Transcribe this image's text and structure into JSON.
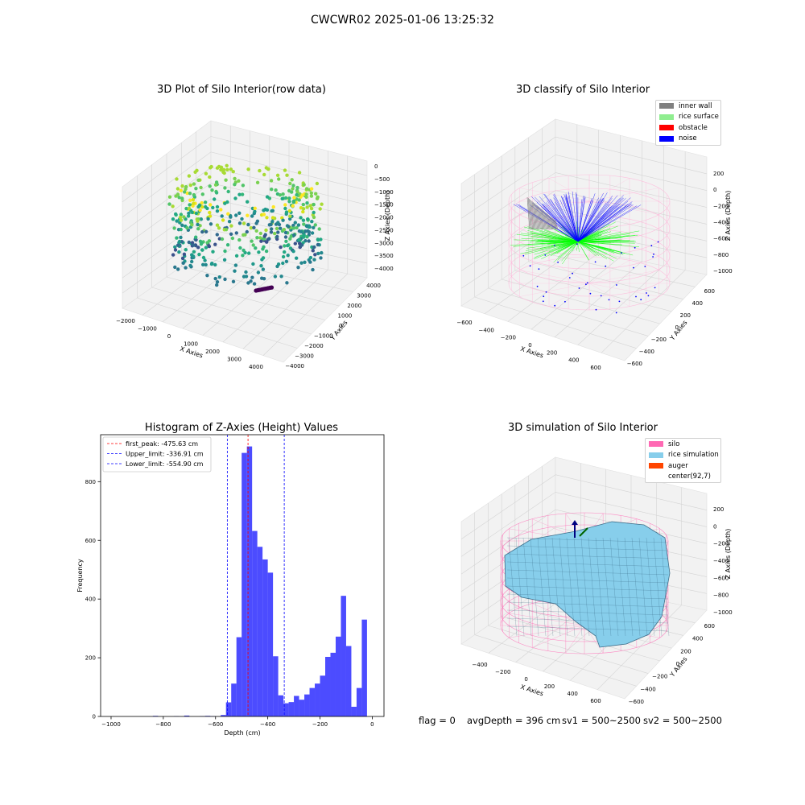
{
  "suptitle": "CWCWR02 2025-01-06 13:25:32",
  "panels": {
    "raw": {
      "title": "3D Plot of Silo Interior(row data)",
      "x_label": "X Axies",
      "y_label": "Y Axies",
      "z_label": "Z Axies (Depth)",
      "x_ticks": [
        "−2000",
        "−1000",
        "0",
        "1000",
        "2000",
        "3000",
        "4000"
      ],
      "y_ticks": [
        "−4000",
        "−3000",
        "−2000",
        "−1000",
        "0",
        "1000",
        "2000",
        "3000",
        "4000"
      ],
      "z_ticks": [
        "0",
        "−500",
        "−1000",
        "−1500",
        "−2000",
        "−2500",
        "−3000",
        "−3500",
        "−4000"
      ]
    },
    "classify": {
      "title": "3D classify of Silo Interior",
      "x_label": "X Axies",
      "y_label": "Y Axies",
      "z_label": "Z Axies (Depth)",
      "x_ticks": [
        "−600",
        "−400",
        "−200",
        "0",
        "200",
        "400",
        "600"
      ],
      "y_ticks": [
        "−600",
        "−400",
        "−200",
        "0",
        "200",
        "400",
        "600"
      ],
      "z_ticks": [
        "200",
        "0",
        "−200",
        "−400",
        "−600",
        "−800",
        "−1000"
      ],
      "legend": [
        {
          "label": "inner wall",
          "color": "#808080"
        },
        {
          "label": "rice surface",
          "color": "#90ee90"
        },
        {
          "label": "obstacle",
          "color": "#ff0000"
        },
        {
          "label": "noise",
          "color": "#0000ff"
        }
      ]
    },
    "simulation": {
      "title": "3D simulation of Silo Interior",
      "x_label": "X Axies",
      "y_label": "Y Axies",
      "z_label": "Z Axies (Depth)",
      "x_ticks": [
        "−400",
        "−200",
        "0",
        "200",
        "400",
        "600"
      ],
      "y_ticks": [
        "−600",
        "−400",
        "−200",
        "0",
        "200",
        "400",
        "600"
      ],
      "z_ticks": [
        "200",
        "0",
        "−200",
        "−400",
        "−600",
        "−800",
        "−1000"
      ],
      "legend": [
        {
          "label": "silo",
          "color": "#ff69b4"
        },
        {
          "label": "rice simulation",
          "color": "#87ceeb"
        },
        {
          "label": "auger",
          "color": "#ff4500"
        },
        {
          "label": "center(92,7)",
          "color": ""
        }
      ]
    }
  },
  "chart_data": {
    "type": "bar",
    "title": "Histogram of Z-Axies (Height) Values",
    "xlabel": "Depth (cm)",
    "ylabel": "Frequency",
    "xlim": [
      -1040,
      45
    ],
    "ylim": [
      0,
      960
    ],
    "x_ticks": [
      -1000,
      -800,
      -600,
      -400,
      -200,
      0
    ],
    "x_tick_labels": [
      "−1000",
      "−800",
      "−600",
      "−400",
      "−200",
      "0"
    ],
    "y_ticks": [
      0,
      200,
      400,
      600,
      800
    ],
    "bar_color": "#0000ff",
    "bins": [
      [
        -1000,
        -980,
        0
      ],
      [
        -980,
        -960,
        0
      ],
      [
        -960,
        -940,
        0
      ],
      [
        -940,
        -920,
        0
      ],
      [
        -920,
        -900,
        0
      ],
      [
        -900,
        -880,
        0
      ],
      [
        -880,
        -860,
        0
      ],
      [
        -860,
        -840,
        0
      ],
      [
        -840,
        -820,
        2
      ],
      [
        -820,
        -800,
        0
      ],
      [
        -800,
        -780,
        0
      ],
      [
        -780,
        -760,
        0
      ],
      [
        -760,
        -740,
        1
      ],
      [
        -740,
        -720,
        0
      ],
      [
        -720,
        -700,
        3
      ],
      [
        -700,
        -680,
        0
      ],
      [
        -680,
        -660,
        0
      ],
      [
        -660,
        -640,
        1
      ],
      [
        -640,
        -620,
        2
      ],
      [
        -620,
        -600,
        1
      ],
      [
        -600,
        -580,
        0
      ],
      [
        -580,
        -560,
        5
      ],
      [
        -560,
        -540,
        48
      ],
      [
        -540,
        -520,
        112
      ],
      [
        -520,
        -500,
        270
      ],
      [
        -500,
        -480,
        898
      ],
      [
        -480,
        -460,
        920
      ],
      [
        -460,
        -440,
        632
      ],
      [
        -440,
        -420,
        578
      ],
      [
        -420,
        -400,
        535
      ],
      [
        -400,
        -380,
        490
      ],
      [
        -380,
        -360,
        205
      ],
      [
        -360,
        -340,
        72
      ],
      [
        -340,
        -320,
        45
      ],
      [
        -320,
        -300,
        49
      ],
      [
        -300,
        -280,
        70
      ],
      [
        -280,
        -260,
        57
      ],
      [
        -260,
        -240,
        75
      ],
      [
        -240,
        -220,
        97
      ],
      [
        -220,
        -200,
        112
      ],
      [
        -200,
        -180,
        139
      ],
      [
        -180,
        -160,
        203
      ],
      [
        -160,
        -140,
        217
      ],
      [
        -140,
        -120,
        272
      ],
      [
        -120,
        -100,
        411
      ],
      [
        -100,
        -80,
        240
      ],
      [
        -80,
        -60,
        33
      ],
      [
        -60,
        -40,
        97
      ],
      [
        -40,
        -20,
        330
      ]
    ],
    "vlines": [
      {
        "label": "first_peak: -475.63 cm",
        "value": -475.63,
        "color": "#ff0000"
      },
      {
        "label": "Upper_limit: -336.91 cm",
        "value": -336.91,
        "color": "#0000ff"
      },
      {
        "label": "Lower_limit: -554.90 cm",
        "value": -554.9,
        "color": "#0000ff"
      }
    ]
  },
  "footer": {
    "flag": "flag = 0",
    "avg": "avgDepth = 396 cm",
    "sv1": "sv1 = 500~2500",
    "sv2": "sv2 = 500~2500"
  }
}
